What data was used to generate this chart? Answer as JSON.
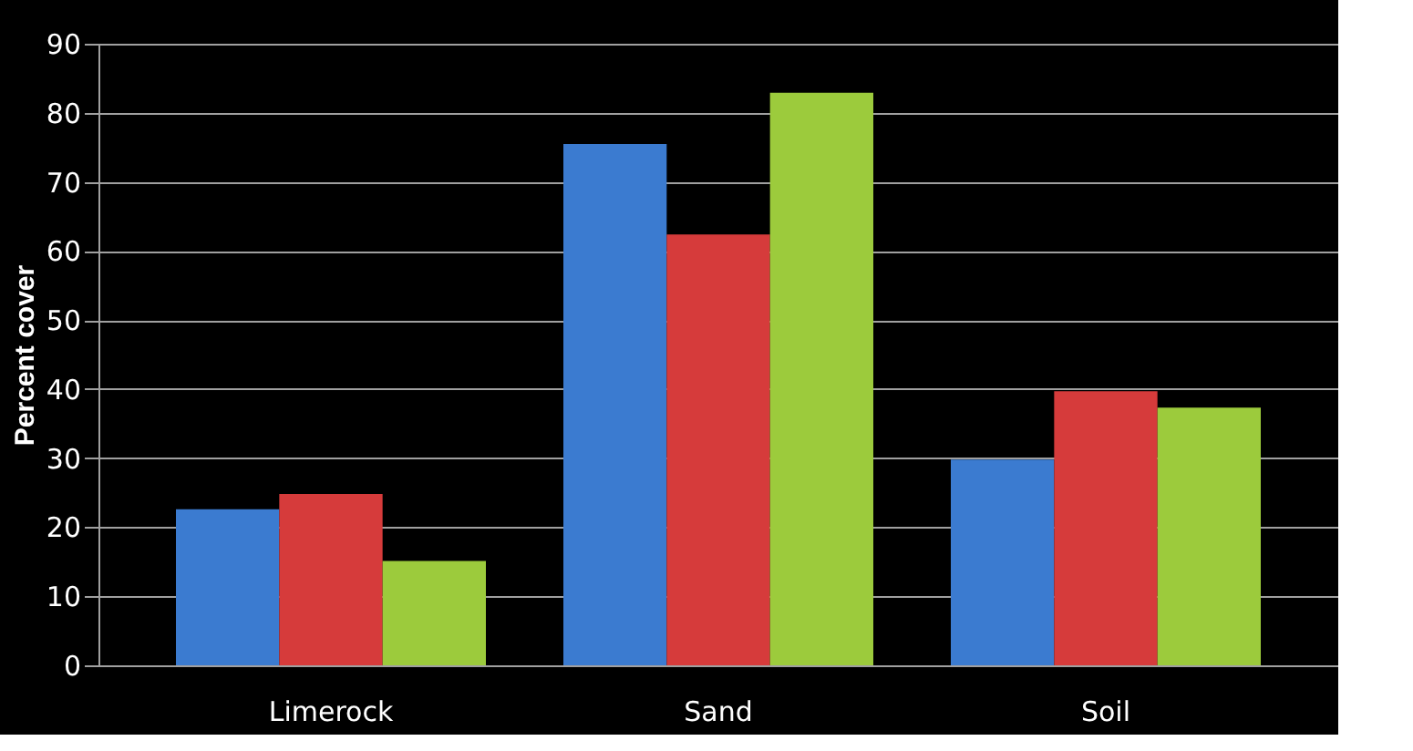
{
  "chart_data": {
    "type": "bar",
    "ylabel": "Percent cover",
    "categories": [
      "Limerock",
      "Sand",
      "Soil"
    ],
    "series": [
      {
        "color": "#3b7bd0",
        "values": [
          22.6,
          75.5,
          29.8
        ]
      },
      {
        "color": "#d63b3b",
        "values": [
          24.8,
          62.4,
          39.7
        ]
      },
      {
        "color": "#9ccb3c",
        "values": [
          15.1,
          82.9,
          37.3
        ]
      }
    ],
    "ylim": [
      0,
      90
    ],
    "yticks": [
      0,
      10,
      20,
      30,
      40,
      50,
      60,
      70,
      80,
      90
    ],
    "grid": "y",
    "legend": false
  }
}
